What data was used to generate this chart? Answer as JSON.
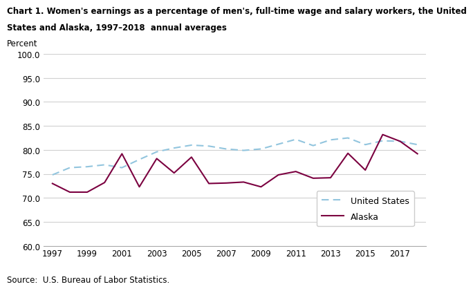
{
  "title_line1": "Chart 1. Women's earnings as a percentage of men's, full-time wage and salary workers, the United",
  "title_line2": "States and Alaska, 1997–2018  annual averages",
  "ylabel": "Percent",
  "source": "Source:  U.S. Bureau of Labor Statistics.",
  "years": [
    1997,
    1998,
    1999,
    2000,
    2001,
    2002,
    2003,
    2004,
    2005,
    2006,
    2007,
    2008,
    2009,
    2010,
    2011,
    2012,
    2013,
    2014,
    2015,
    2016,
    2017,
    2018
  ],
  "us_values": [
    74.8,
    76.3,
    76.5,
    76.9,
    76.3,
    78.0,
    79.6,
    80.4,
    81.0,
    80.8,
    80.2,
    79.9,
    80.2,
    81.2,
    82.2,
    80.9,
    82.1,
    82.5,
    81.1,
    81.9,
    81.8,
    81.1
  ],
  "alaska_values": [
    73.0,
    71.2,
    71.2,
    73.2,
    79.2,
    72.3,
    78.2,
    75.2,
    78.5,
    73.0,
    73.1,
    73.3,
    72.3,
    74.8,
    75.5,
    74.1,
    74.2,
    79.3,
    75.8,
    83.2,
    81.8,
    79.2
  ],
  "us_color": "#92c5de",
  "alaska_color": "#7b0040",
  "ylim": [
    60.0,
    100.0
  ],
  "yticks": [
    60.0,
    65.0,
    70.0,
    75.0,
    80.0,
    85.0,
    90.0,
    95.0,
    100.0
  ],
  "xticks": [
    1997,
    1999,
    2001,
    2003,
    2005,
    2007,
    2009,
    2011,
    2013,
    2015,
    2017
  ],
  "legend_labels": [
    "United States",
    "Alaska"
  ],
  "bg_color": "#ffffff",
  "grid_color": "#d0d0d0"
}
